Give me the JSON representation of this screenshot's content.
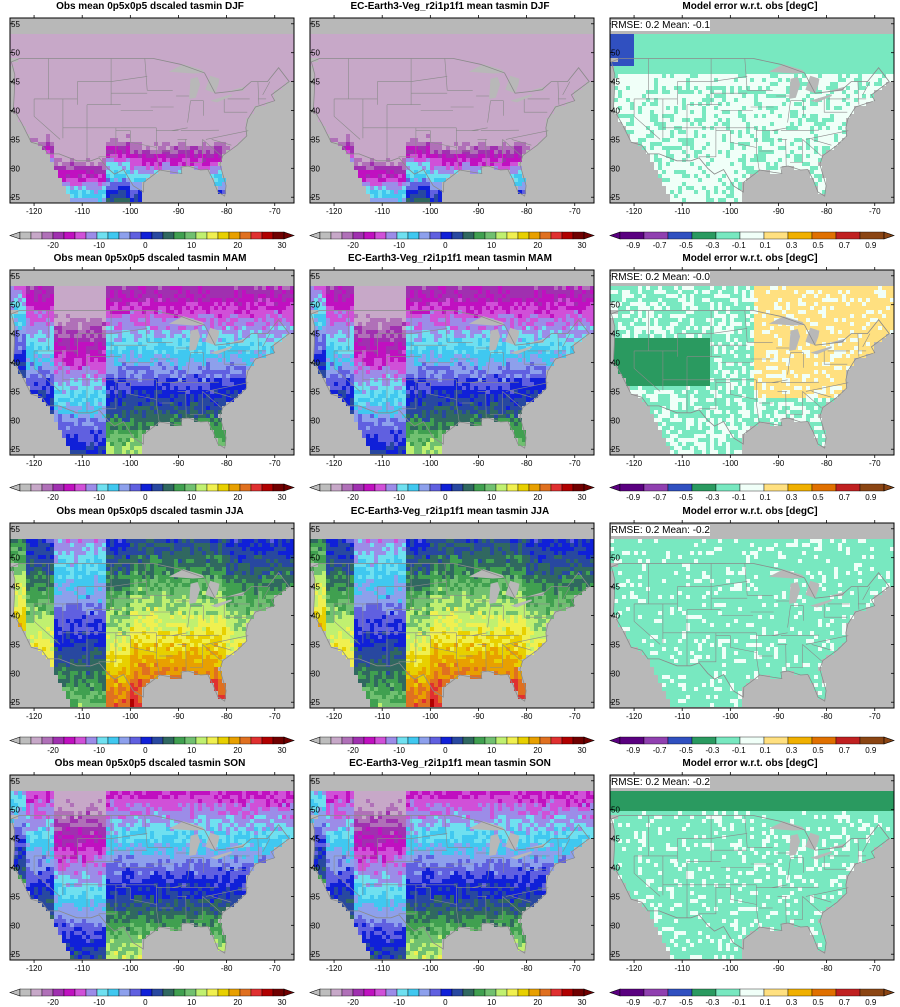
{
  "rows": [
    {
      "season": "DJF",
      "titles": [
        "Obs mean 0p5x0p5 dscaled tasmin DJF",
        "EC-Earth3-Veg_r2i1p1f1 mean tasmin DJF",
        "Model error w.r.t. obs [degC]"
      ],
      "stats": "RMSE: 0.2  Mean: -0.1"
    },
    {
      "season": "MAM",
      "titles": [
        "Obs mean 0p5x0p5 dscaled tasmin MAM",
        "EC-Earth3-Veg_r2i1p1f1 mean tasmin MAM",
        "Model error w.r.t. obs [degC]"
      ],
      "stats": "RMSE: 0.2  Mean: -0.0"
    },
    {
      "season": "JJA",
      "titles": [
        "Obs mean 0p5x0p5 dscaled tasmin JJA",
        "EC-Earth3-Veg_r2i1p1f1 mean tasmin JJA",
        "Model error w.r.t. obs [degC]"
      ],
      "stats": "RMSE: 0.2  Mean: -0.2"
    },
    {
      "season": "SON",
      "titles": [
        "Obs mean 0p5x0p5 dscaled tasmin SON",
        "EC-Earth3-Veg_r2i1p1f1 mean tasmin SON",
        "Model error w.r.t. obs [degC]"
      ],
      "stats": "RMSE: 0.2  Mean: -0.2"
    }
  ],
  "map_axes": {
    "lon_ticks": [
      "-120",
      "-110",
      "-100",
      "-90",
      "-80",
      "-70"
    ],
    "lat_ticks": [
      "55",
      "50",
      "45",
      "40",
      "35",
      "30",
      "25"
    ],
    "lon_range": [
      -125,
      -66
    ],
    "lat_range": [
      24,
      56
    ]
  },
  "temp_colorbar": {
    "labels": [
      "-20",
      "-10",
      "0",
      "10",
      "20",
      "30"
    ],
    "colors": [
      "#bdbdbd",
      "#c7a8c8",
      "#b070b8",
      "#a030b0",
      "#c010c0",
      "#d050d8",
      "#9c8ce8",
      "#6fe0f0",
      "#40c8f0",
      "#8da0ec",
      "#6060e0",
      "#1020d8",
      "#2848a0",
      "#306860",
      "#40a050",
      "#70c070",
      "#c0f070",
      "#f0f050",
      "#e8d000",
      "#e8a000",
      "#e07020",
      "#e03030",
      "#b00000",
      "#700000"
    ]
  },
  "error_colorbar": {
    "labels": [
      "-0.9",
      "-0.7",
      "-0.5",
      "-0.3",
      "-0.1",
      "0.1",
      "0.3",
      "0.5",
      "0.7",
      "0.9"
    ],
    "colors": [
      "#5a0080",
      "#9040b0",
      "#3050c0",
      "#2a9a60",
      "#78e8c0",
      "#f0fff8",
      "#ffe080",
      "#f0b000",
      "#e07000",
      "#c02020",
      "#8b4513"
    ]
  },
  "colors": {
    "ocean": "#b8b8b8",
    "state_lines": "#8a8a8a",
    "frame": "#000000"
  }
}
